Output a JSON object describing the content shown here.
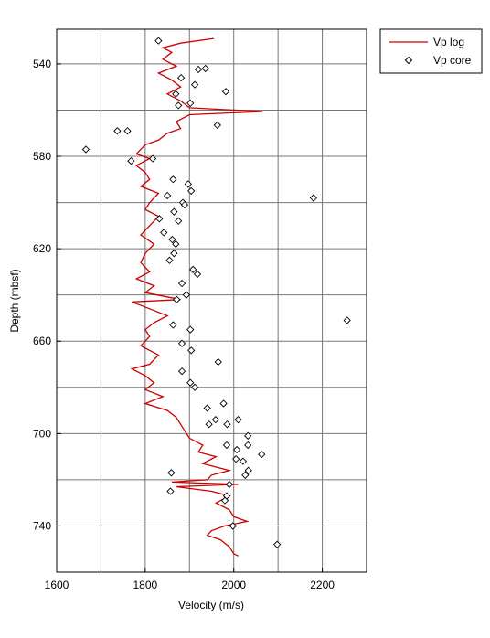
{
  "chart_data": {
    "type": "line",
    "xlabel": "Velocity (m/s)",
    "ylabel": "Depth (mbsf)",
    "xlim": [
      1600,
      2300
    ],
    "ylim": [
      525,
      760
    ],
    "y_inverted": true,
    "xticks": [
      1600,
      1800,
      2000,
      2200
    ],
    "yticks": [
      540,
      580,
      620,
      660,
      700,
      740
    ],
    "xgrid": [
      1700,
      1900,
      2100
    ],
    "ygrid": [
      560,
      600,
      640,
      680,
      720
    ],
    "grid": true,
    "legend": "outside-top-right",
    "series": [
      {
        "name": "Vp log",
        "type": "line",
        "color": "#cc0000",
        "depth": [
          529,
          531,
          533,
          535,
          538,
          541,
          544,
          547,
          550,
          553,
          556,
          559,
          560.6,
          562,
          565,
          568,
          570,
          573,
          575,
          577,
          579,
          581,
          584,
          587,
          590,
          593,
          596,
          600,
          603,
          606,
          610,
          614,
          618,
          622,
          626,
          630,
          633,
          636,
          639,
          642,
          643,
          646,
          649,
          652,
          655,
          658,
          662,
          666,
          670,
          672,
          675,
          678,
          681,
          684,
          687,
          690,
          693,
          696,
          699,
          702,
          705,
          708,
          710,
          713,
          716,
          718,
          720,
          721,
          722,
          723,
          725,
          727,
          730,
          733,
          736,
          738,
          740,
          742,
          744,
          746,
          749,
          752,
          753
        ],
        "values": [
          1955,
          1880,
          1840,
          1860,
          1840,
          1870,
          1830,
          1860,
          1880,
          1850,
          1880,
          1900,
          2065,
          1900,
          1870,
          1880,
          1850,
          1830,
          1800,
          1790,
          1780,
          1810,
          1780,
          1800,
          1810,
          1790,
          1830,
          1810,
          1800,
          1830,
          1810,
          1790,
          1820,
          1800,
          1790,
          1810,
          1780,
          1820,
          1800,
          1880,
          1770,
          1810,
          1850,
          1820,
          1800,
          1810,
          1790,
          1830,
          1810,
          1770,
          1800,
          1820,
          1800,
          1840,
          1800,
          1850,
          1870,
          1880,
          1890,
          1900,
          1930,
          1920,
          1960,
          1930,
          1990,
          1950,
          1940,
          1860,
          2010,
          1870,
          1950,
          1990,
          1960,
          1990,
          2000,
          2030,
          1980,
          1950,
          1940,
          1970,
          1990,
          2000,
          2010
        ]
      },
      {
        "name": "Vp core",
        "type": "scatter",
        "color": "#000000",
        "depth": [
          530,
          542.4,
          542,
          549,
          546,
          553,
          552,
          557,
          558,
          566.5,
          569,
          569,
          577,
          582,
          581,
          590,
          592,
          595,
          597,
          598,
          600,
          601,
          604,
          607,
          608,
          613,
          616,
          618,
          622,
          625,
          629,
          631,
          635,
          640,
          642,
          651,
          653,
          655,
          661,
          664,
          669,
          673,
          678,
          680,
          689,
          687,
          694,
          696,
          696,
          694,
          701,
          705,
          707,
          705,
          711,
          712,
          716,
          709,
          718,
          717,
          725,
          722,
          727,
          729,
          740,
          748
        ],
        "values": [
          1830,
          1920,
          1936,
          1912,
          1881,
          1869,
          1982,
          1902,
          1875,
          1963,
          1737,
          1760,
          1666,
          1768,
          1817,
          1863,
          1897,
          1904,
          1850,
          2180,
          1885,
          1889,
          1865,
          1832,
          1875,
          1842,
          1861,
          1869,
          1865,
          1855,
          1908,
          1918,
          1883,
          1893,
          1871,
          2256,
          1863,
          1902,
          1883,
          1904,
          1965,
          1883,
          1902,
          1912,
          1940,
          1977,
          1959,
          1944,
          1985,
          2010,
          2032,
          1984,
          2007,
          2032,
          2005,
          2021,
          2033,
          2063,
          2026,
          1859,
          1857,
          1990,
          1984,
          1980,
          1998,
          2098
        ]
      }
    ]
  }
}
